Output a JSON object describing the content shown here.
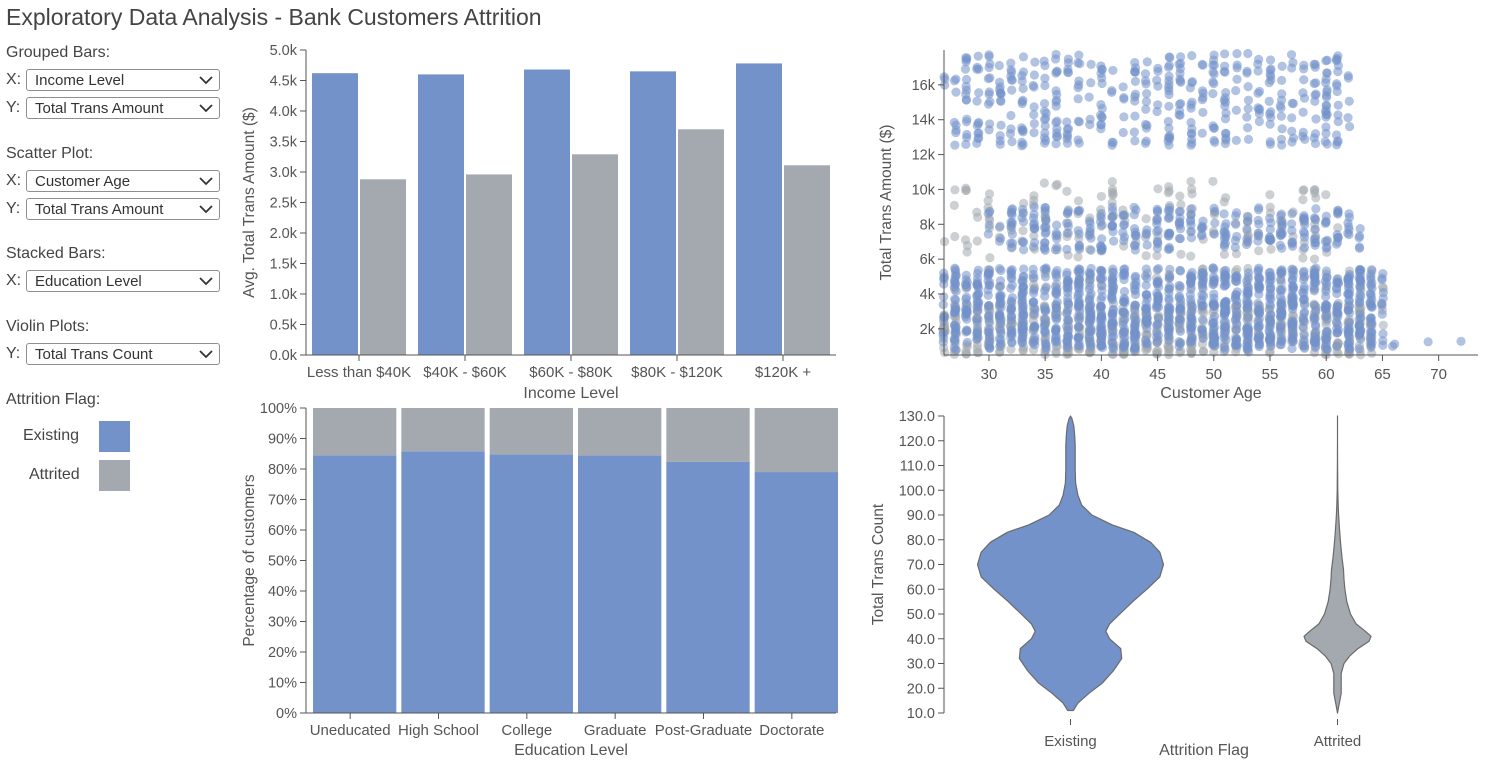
{
  "title": "Exploratory Data Analysis - Bank Customers Attrition",
  "colors": {
    "existing": "#7392ca",
    "attrited": "#a3a9ae"
  },
  "controls": {
    "grouped": {
      "title": "Grouped Bars:",
      "x_label": "X:",
      "x_value": "Income Level",
      "y_label": "Y:",
      "y_value": "Total Trans Amount"
    },
    "scatter": {
      "title": "Scatter Plot:",
      "x_label": "X:",
      "x_value": "Customer Age",
      "y_label": "Y:",
      "y_value": "Total Trans Amount"
    },
    "stacked": {
      "title": "Stacked Bars:",
      "x_label": "X:",
      "x_value": "Education Level"
    },
    "violin": {
      "title": "Violin Plots:",
      "y_label": "Y:",
      "y_value": "Total Trans Count"
    }
  },
  "legend": {
    "title": "Attrition Flag:",
    "existing": "Existing",
    "attrited": "Attrited"
  },
  "chart_data": [
    {
      "id": "grouped",
      "type": "bar",
      "xlabel": "Income Level",
      "ylabel": "Avg. Total Trans Amount ($)",
      "categories": [
        "Less than $40K",
        "$40K - $60K",
        "$60K - $80K",
        "$80K - $120K",
        "$120K +"
      ],
      "series": [
        {
          "name": "Existing",
          "values": [
            4620,
            4600,
            4680,
            4650,
            4780
          ]
        },
        {
          "name": "Attrited",
          "values": [
            2880,
            2960,
            3290,
            3700,
            3110
          ]
        }
      ],
      "ylim": [
        0,
        5000
      ],
      "yticks": [
        0,
        500,
        1000,
        1500,
        2000,
        2500,
        3000,
        3500,
        4000,
        4500,
        5000
      ],
      "ytick_labels": [
        "0.0k",
        "0.5k",
        "1.0k",
        "1.5k",
        "2.0k",
        "2.5k",
        "3.0k",
        "3.5k",
        "4.0k",
        "4.5k",
        "5.0k"
      ]
    },
    {
      "id": "scatter",
      "type": "scatter",
      "xlabel": "Customer Age",
      "ylabel": "Total Trans Amount ($)",
      "xlim": [
        26,
        73.5
      ],
      "ylim": [
        500,
        18000
      ],
      "xticks": [
        30,
        35,
        40,
        45,
        50,
        55,
        60,
        65,
        70
      ],
      "xtick_labels": [
        "30",
        "35",
        "40",
        "45",
        "50",
        "55",
        "60",
        "65",
        "70"
      ],
      "yticks": [
        2000,
        4000,
        6000,
        8000,
        10000,
        12000,
        14000,
        16000
      ],
      "ytick_labels": [
        "2k",
        "4k",
        "6k",
        "8k",
        "10k",
        "12k",
        "14k",
        "16k"
      ],
      "series": [
        {
          "name": "Existing",
          "clusters": [
            {
              "age": [
                26,
                65
              ],
              "amount": [
                800,
                5500
              ],
              "count": 1100
            },
            {
              "age": [
                30,
                63
              ],
              "amount": [
                6500,
                9000
              ],
              "count": 280
            },
            {
              "age": [
                26,
                62
              ],
              "amount": [
                12500,
                17800
              ],
              "count": 420
            },
            {
              "age": [
                65,
                73
              ],
              "amount": [
                1000,
                2000
              ],
              "count": 5
            }
          ]
        },
        {
          "name": "Attrited",
          "clusters": [
            {
              "age": [
                26,
                65
              ],
              "amount": [
                500,
                3500
              ],
              "count": 650
            },
            {
              "age": [
                26,
                65
              ],
              "amount": [
                4200,
                5500
              ],
              "count": 80
            },
            {
              "age": [
                26,
                61
              ],
              "amount": [
                6000,
                10500
              ],
              "count": 160
            }
          ]
        }
      ]
    },
    {
      "id": "stacked",
      "type": "bar",
      "xlabel": "Education Level",
      "ylabel": "Percentage of customers",
      "categories": [
        "Uneducated",
        "High School",
        "College",
        "Graduate",
        "Post-Graduate",
        "Doctorate"
      ],
      "series": [
        {
          "name": "Existing",
          "values": [
            84.5,
            85.8,
            84.8,
            84.4,
            82.4,
            79.0
          ]
        },
        {
          "name": "Attrited",
          "values": [
            15.5,
            14.2,
            15.2,
            15.6,
            17.6,
            21.0
          ]
        }
      ],
      "ylim": [
        0,
        100
      ],
      "yticks": [
        0,
        10,
        20,
        30,
        40,
        50,
        60,
        70,
        80,
        90,
        100
      ],
      "ytick_labels": [
        "0%",
        "10%",
        "20%",
        "30%",
        "40%",
        "50%",
        "60%",
        "70%",
        "80%",
        "90%",
        "100%"
      ]
    },
    {
      "id": "violin",
      "type": "violin",
      "xlabel": "Attrition Flag",
      "ylabel": "Total Trans Count",
      "categories": [
        "Existing",
        "Attrited"
      ],
      "ylim": [
        10,
        130
      ],
      "yticks": [
        10,
        20,
        30,
        40,
        50,
        60,
        70,
        80,
        90,
        100,
        110,
        120,
        130
      ],
      "ytick_labels": [
        "10.0",
        "20.0",
        "30.0",
        "40.0",
        "50.0",
        "60.0",
        "70.0",
        "80.0",
        "90.0",
        "100.0",
        "110.0",
        "120.0",
        "130.0"
      ],
      "density": {
        "Existing": [
          [
            11,
            0.03
          ],
          [
            14,
            0.08
          ],
          [
            18,
            0.2
          ],
          [
            22,
            0.34
          ],
          [
            27,
            0.46
          ],
          [
            32,
            0.55
          ],
          [
            36,
            0.54
          ],
          [
            40,
            0.42
          ],
          [
            43,
            0.38
          ],
          [
            46,
            0.42
          ],
          [
            50,
            0.53
          ],
          [
            55,
            0.67
          ],
          [
            60,
            0.82
          ],
          [
            65,
            0.96
          ],
          [
            70,
            1.0
          ],
          [
            75,
            0.96
          ],
          [
            79,
            0.86
          ],
          [
            83,
            0.68
          ],
          [
            86,
            0.45
          ],
          [
            90,
            0.23
          ],
          [
            94,
            0.12
          ],
          [
            98,
            0.08
          ],
          [
            103,
            0.055
          ],
          [
            108,
            0.05
          ],
          [
            113,
            0.05
          ],
          [
            118,
            0.05
          ],
          [
            122,
            0.045
          ],
          [
            126,
            0.035
          ],
          [
            129,
            0.015
          ],
          [
            130,
            0.0
          ]
        ],
        "Attrited": [
          [
            10,
            0.0
          ],
          [
            12,
            0.01
          ],
          [
            15,
            0.025
          ],
          [
            18,
            0.04
          ],
          [
            22,
            0.04
          ],
          [
            26,
            0.04
          ],
          [
            30,
            0.07
          ],
          [
            33,
            0.13
          ],
          [
            36,
            0.22
          ],
          [
            39,
            0.34
          ],
          [
            41,
            0.36
          ],
          [
            43,
            0.3
          ],
          [
            46,
            0.2
          ],
          [
            50,
            0.14
          ],
          [
            55,
            0.1
          ],
          [
            60,
            0.08
          ],
          [
            64,
            0.07
          ],
          [
            68,
            0.065
          ],
          [
            72,
            0.05
          ],
          [
            76,
            0.04
          ],
          [
            80,
            0.03
          ],
          [
            85,
            0.02
          ],
          [
            90,
            0.012
          ],
          [
            95,
            0.006
          ],
          [
            100,
            0.003
          ],
          [
            110,
            0.001
          ],
          [
            120,
            0.0005
          ],
          [
            130,
            0.0
          ]
        ]
      }
    }
  ]
}
